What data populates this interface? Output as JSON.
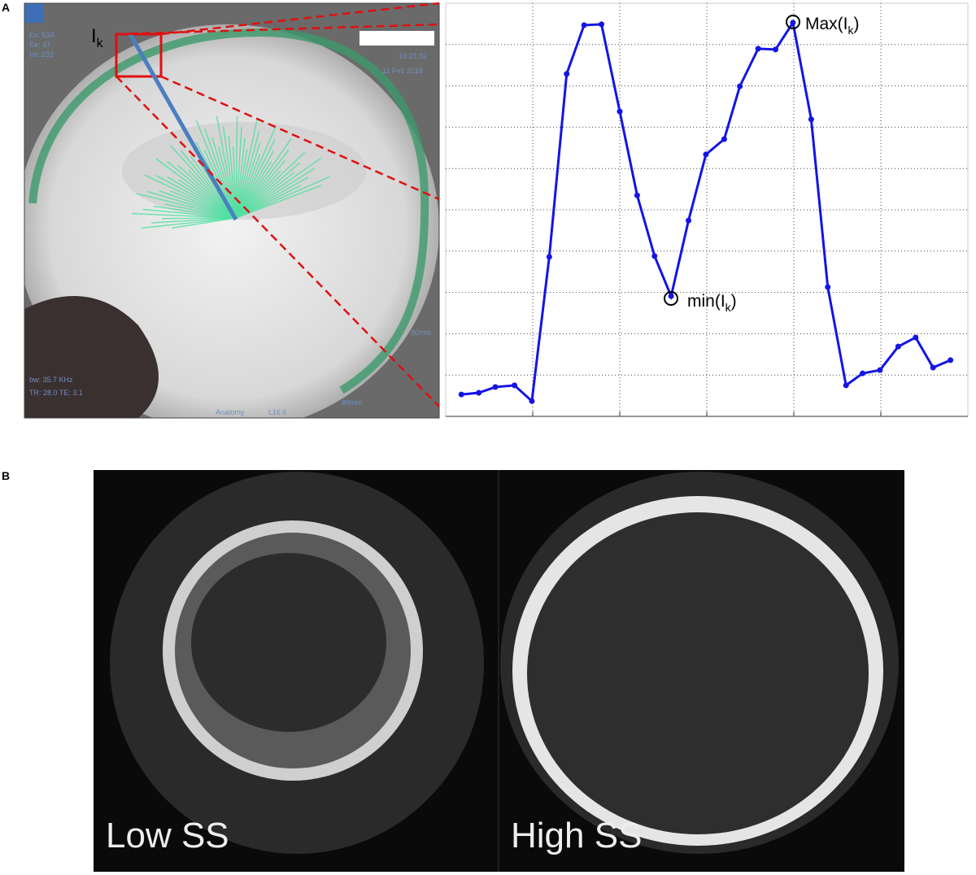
{
  "panels": {
    "a": "A",
    "b": "B"
  },
  "mri": {
    "ray_label": {
      "base": "I",
      "sub": "k"
    },
    "texts": [
      "Ex: 534",
      "Se: 37",
      "Im: 232",
      "10:21:32",
      "11 Feb 2018",
      "bw: 35.7 KHz",
      "TR: 28.0 TE: 3.1",
      "80mm",
      "80mm",
      "Anatomy",
      "L16.6"
    ]
  },
  "chart_data": {
    "type": "line",
    "x": [
      0.18,
      0.38,
      0.57,
      0.79,
      0.99,
      1.19,
      1.39,
      1.59,
      1.79,
      2.0,
      2.2,
      2.4,
      2.59,
      2.79,
      2.99,
      3.2,
      3.38,
      3.59,
      3.79,
      3.99,
      4.2,
      4.39,
      4.6,
      4.79,
      4.99,
      5.2,
      5.4,
      5.6,
      5.8
    ],
    "series": [
      {
        "color": "#1414e6",
        "values": [
          0.53,
          0.57,
          0.71,
          0.75,
          0.37,
          3.86,
          8.29,
          9.47,
          9.49,
          7.38,
          5.35,
          3.88,
          2.91,
          4.74,
          6.34,
          6.71,
          7.99,
          8.9,
          8.88,
          9.53,
          7.19,
          3.13,
          0.75,
          1.04,
          1.12,
          1.69,
          1.91,
          1.18,
          1.36
        ]
      }
    ],
    "xlim": [
      0,
      6
    ],
    "ylim": [
      0,
      10
    ],
    "xticks": [
      1,
      2,
      3,
      4,
      5
    ],
    "yticks": [
      1,
      2,
      3,
      4,
      5,
      6,
      7,
      8,
      9
    ],
    "grid": true,
    "annotations": {
      "max": {
        "pre": "Max(I",
        "sub": "k",
        "post": ")"
      },
      "min": {
        "pre": "min(I",
        "sub": "k",
        "post": ")"
      }
    }
  },
  "ct": {
    "left_label": "Low SS",
    "right_label": "High SS"
  }
}
